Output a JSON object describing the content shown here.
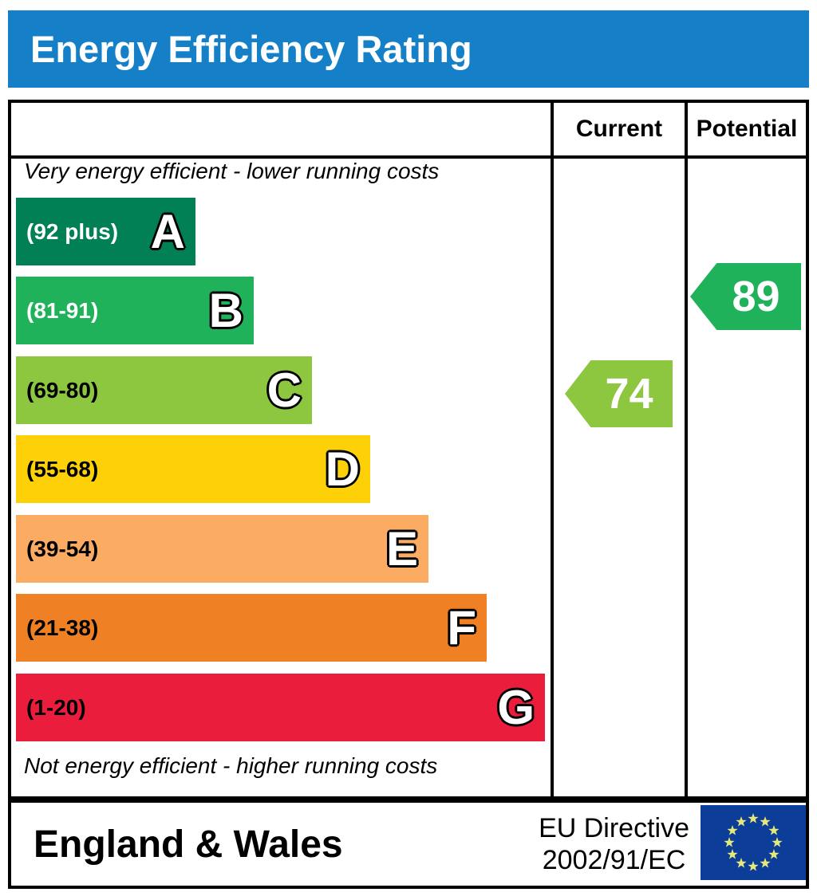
{
  "title": "Energy Efficiency Rating",
  "table": {
    "current_header": "Current",
    "potential_header": "Potential",
    "top_note": "Very energy efficient - lower running costs",
    "bottom_note": "Not energy efficient - higher running costs"
  },
  "bands": [
    {
      "letter": "A",
      "range": "(92 plus)",
      "color": "#008054",
      "range_text_color": "#ffffff"
    },
    {
      "letter": "B",
      "range": "(81-91)",
      "color": "#1fb25a",
      "range_text_color": "#ffffff"
    },
    {
      "letter": "C",
      "range": "(69-80)",
      "color": "#8dc63f",
      "range_text_color": "#000000"
    },
    {
      "letter": "D",
      "range": "(55-68)",
      "color": "#fdd008",
      "range_text_color": "#000000"
    },
    {
      "letter": "E",
      "range": "(39-54)",
      "color": "#fbab62",
      "range_text_color": "#000000"
    },
    {
      "letter": "F",
      "range": "(21-38)",
      "color": "#ef8023",
      "range_text_color": "#000000"
    },
    {
      "letter": "G",
      "range": "(1-20)",
      "color": "#ea1d3d",
      "range_text_color": "#000000"
    }
  ],
  "ratings": {
    "current": {
      "value": "74",
      "band": "C",
      "color": "#8dc63f"
    },
    "potential": {
      "value": "89",
      "band": "B",
      "color": "#1fb25a"
    }
  },
  "footer": {
    "region": "England & Wales",
    "directive_line1": "EU Directive",
    "directive_line2": "2002/91/EC",
    "flag": {
      "bg": "#0b3d99",
      "star_color": "#e5e97a"
    }
  },
  "colors": {
    "header_bg": "#1580c8",
    "header_text": "#ffffff",
    "border": "#000000",
    "page_bg": "#ffffff"
  },
  "chart_data": {
    "type": "bar",
    "title": "Energy Efficiency Rating",
    "categories": [
      "A",
      "B",
      "C",
      "D",
      "E",
      "F",
      "G"
    ],
    "band_ranges": [
      "92 plus",
      "81-91",
      "69-80",
      "55-68",
      "39-54",
      "21-38",
      "1-20"
    ],
    "band_colors": [
      "#008054",
      "#1fb25a",
      "#8dc63f",
      "#fdd008",
      "#fbab62",
      "#ef8023",
      "#ea1d3d"
    ],
    "series": [
      {
        "name": "Current",
        "values": [
          74
        ],
        "band": "C",
        "color": "#8dc63f"
      },
      {
        "name": "Potential",
        "values": [
          89
        ],
        "band": "B",
        "color": "#1fb25a"
      }
    ],
    "scale_min": 1,
    "scale_max": 100,
    "notes": [
      "Very energy efficient - lower running costs",
      "Not energy efficient - higher running costs"
    ],
    "footer_region": "England & Wales",
    "footer_directive": "EU Directive 2002/91/EC"
  }
}
